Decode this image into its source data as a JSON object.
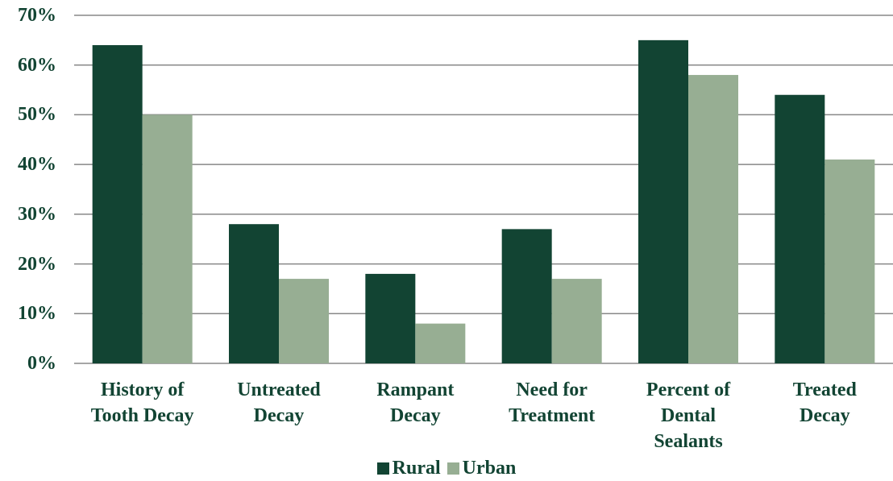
{
  "chart_data": {
    "type": "bar",
    "categories": [
      "History of Tooth Decay",
      "Untreated Decay",
      "Rampant Decay",
      "Need for Treatment",
      "Percent of Dental Sealants",
      "Treated Decay"
    ],
    "series": [
      {
        "name": "Rural",
        "color": "#124433",
        "values": [
          64,
          28,
          18,
          27,
          65,
          54
        ]
      },
      {
        "name": "Urban",
        "color": "#97ae93",
        "values": [
          50,
          17,
          8,
          17,
          58,
          41
        ]
      }
    ],
    "ylim": [
      0,
      70
    ],
    "yticks": [
      {
        "value": 0,
        "label": "0%"
      },
      {
        "value": 10,
        "label": "10%"
      },
      {
        "value": 20,
        "label": "20%"
      },
      {
        "value": 30,
        "label": "30%"
      },
      {
        "value": 40,
        "label": "40%"
      },
      {
        "value": 50,
        "label": "50%"
      },
      {
        "value": 60,
        "label": "60%"
      },
      {
        "value": 70,
        "label": "70%"
      }
    ],
    "grid": true,
    "legend": "bottom"
  }
}
